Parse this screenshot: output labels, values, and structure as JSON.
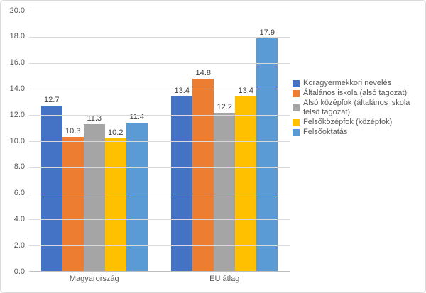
{
  "chart_data": {
    "type": "bar",
    "title": "",
    "xlabel": "",
    "ylabel": "",
    "categories": [
      "Magyarország",
      "EU átlag"
    ],
    "series": [
      {
        "name": "Koragyermekkori nevelés",
        "color": "#4472C4",
        "values": [
          12.7,
          13.4
        ]
      },
      {
        "name": "Általános iskola (alsó tagozat)",
        "color": "#ED7D31",
        "values": [
          10.3,
          14.8
        ]
      },
      {
        "name": "Alsó középfok (általános iskola felső tagozat)",
        "color": "#A5A5A5",
        "values": [
          11.3,
          12.2
        ]
      },
      {
        "name": "Felsőközépfok (középfok)",
        "color": "#FFC000",
        "values": [
          10.2,
          13.4
        ]
      },
      {
        "name": "Felsőoktatás",
        "color": "#5B9BD5",
        "values": [
          11.4,
          17.9
        ]
      }
    ],
    "ylim": [
      0,
      20
    ],
    "ytick_step": 2,
    "ytick_labels": [
      "0.0",
      "2.0",
      "4.0",
      "6.0",
      "8.0",
      "10.0",
      "12.0",
      "14.0",
      "16.0",
      "18.0",
      "20.0"
    ],
    "grid": true,
    "data_labels": true,
    "legend_position": "right"
  },
  "style": {
    "background": "#FFFFFF",
    "border_color": "#D9D9D9",
    "gridline_color": "#D9D9D9",
    "axis_line_color": "#BFBFBF",
    "tick_label_color": "#595959",
    "category_label_color": "#595959",
    "data_label_color": "#404040",
    "legend_text_color": "#595959"
  }
}
